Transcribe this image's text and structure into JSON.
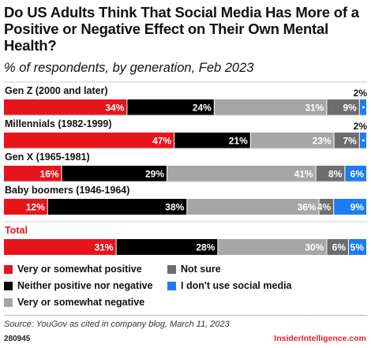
{
  "title": "Do US Adults Think That Social Media Has More of a Positive or Negative Effect on Their Own Mental Health?",
  "subtitle": "% of respondents, by generation, Feb 2023",
  "source": "Source: YouGov as cited in company blog, March 11, 2023",
  "chart_id": "280945",
  "brand": "InsiderIntelligence.com",
  "chart_data": {
    "type": "bar",
    "stacked": true,
    "orientation": "horizontal",
    "xlim": [
      0,
      100
    ],
    "categories": [
      "Gen Z (2000 and later)",
      "Millennials (1982-1999)",
      "Gen X (1965-1981)",
      "Baby boomers (1946-1964)",
      "Total"
    ],
    "series": [
      {
        "name": "Very or somewhat positive",
        "color": "#e8141c",
        "values": [
          34,
          47,
          16,
          12,
          31
        ]
      },
      {
        "name": "Neither positive nor negative",
        "color": "#000000",
        "values": [
          24,
          21,
          29,
          38,
          28
        ]
      },
      {
        "name": "Very or somewhat negative",
        "color": "#a6a6a6",
        "values": [
          31,
          23,
          41,
          36,
          30
        ]
      },
      {
        "name": "Not sure",
        "color": "#6d6d6d",
        "values": [
          9,
          7,
          8,
          4,
          6
        ]
      },
      {
        "name": "I don't use social media",
        "color": "#1c7cf4",
        "values": [
          2,
          2,
          6,
          9,
          5
        ]
      }
    ],
    "value_labels": [
      [
        "34%",
        "24%",
        "31%",
        "9%",
        "2%"
      ],
      [
        "47%",
        "21%",
        "23%",
        "7%",
        "2%"
      ],
      [
        "16%",
        "29%",
        "41%",
        "8%",
        "6%"
      ],
      [
        "12%",
        "38%",
        "36%",
        "4%",
        "9%"
      ],
      [
        "31%",
        "28%",
        "30%",
        "6%",
        "5%"
      ]
    ],
    "highlight_category": "Total",
    "highlight_color": "#e8141c",
    "legend_placement": "bottom"
  }
}
